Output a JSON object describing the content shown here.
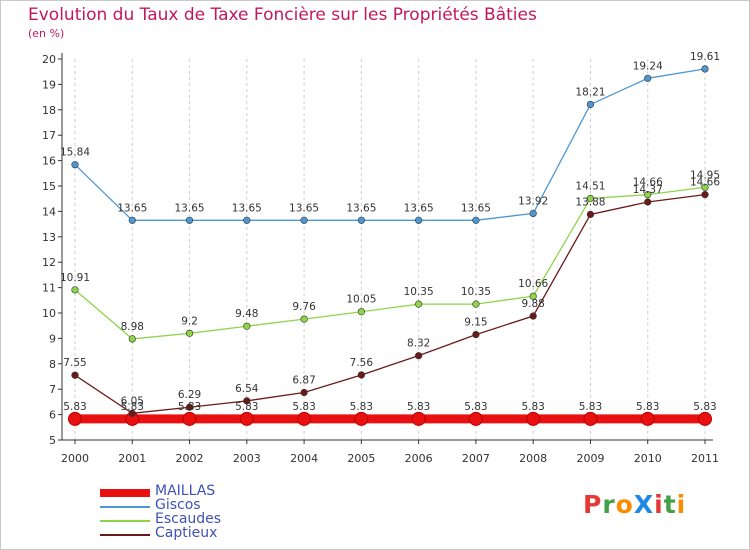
{
  "header": {
    "title": "Evolution du Taux de Taxe Foncière sur les Propriétés Bâties",
    "unit": "(en %)"
  },
  "logo": {
    "text": "ProXiti",
    "colors": [
      "#e53935",
      "#43a047",
      "#fb8c00",
      "#1e88e5"
    ]
  },
  "chart_data": {
    "type": "line",
    "title": "Evolution du Taux de Taxe Foncière sur les Propriétés Bâties",
    "ylabel": "(en %)",
    "xlabel": "",
    "x": [
      "2000",
      "2001",
      "2002",
      "2003",
      "2004",
      "2005",
      "2006",
      "2007",
      "2008",
      "2009",
      "2010",
      "2011"
    ],
    "ylim": [
      5,
      20
    ],
    "yticks": [
      5,
      6,
      7,
      8,
      9,
      10,
      11,
      12,
      13,
      14,
      15,
      16,
      17,
      18,
      19,
      20
    ],
    "grid": "vertical-dashed",
    "legend_position": "bottom-left",
    "series": [
      {
        "name": "MAILLAS",
        "color": "#e81010",
        "values": [
          5.83,
          5.83,
          5.83,
          5.83,
          5.83,
          5.83,
          5.83,
          5.83,
          5.83,
          5.83,
          5.83,
          5.83
        ]
      },
      {
        "name": "Giscos",
        "color": "#4f97d3",
        "values": [
          15.84,
          13.65,
          13.65,
          13.65,
          13.65,
          13.65,
          13.65,
          13.65,
          13.92,
          18.21,
          19.24,
          19.61
        ]
      },
      {
        "name": "Escaudes",
        "color": "#8ed54b",
        "values": [
          10.91,
          8.98,
          9.2,
          9.48,
          9.76,
          10.05,
          10.35,
          10.35,
          10.66,
          14.51,
          14.66,
          14.95
        ]
      },
      {
        "name": "Captieux",
        "color": "#6b1a1a",
        "values": [
          7.55,
          6.05,
          6.29,
          6.54,
          6.87,
          7.56,
          8.32,
          9.15,
          9.88,
          13.88,
          14.37,
          14.66
        ]
      }
    ]
  }
}
